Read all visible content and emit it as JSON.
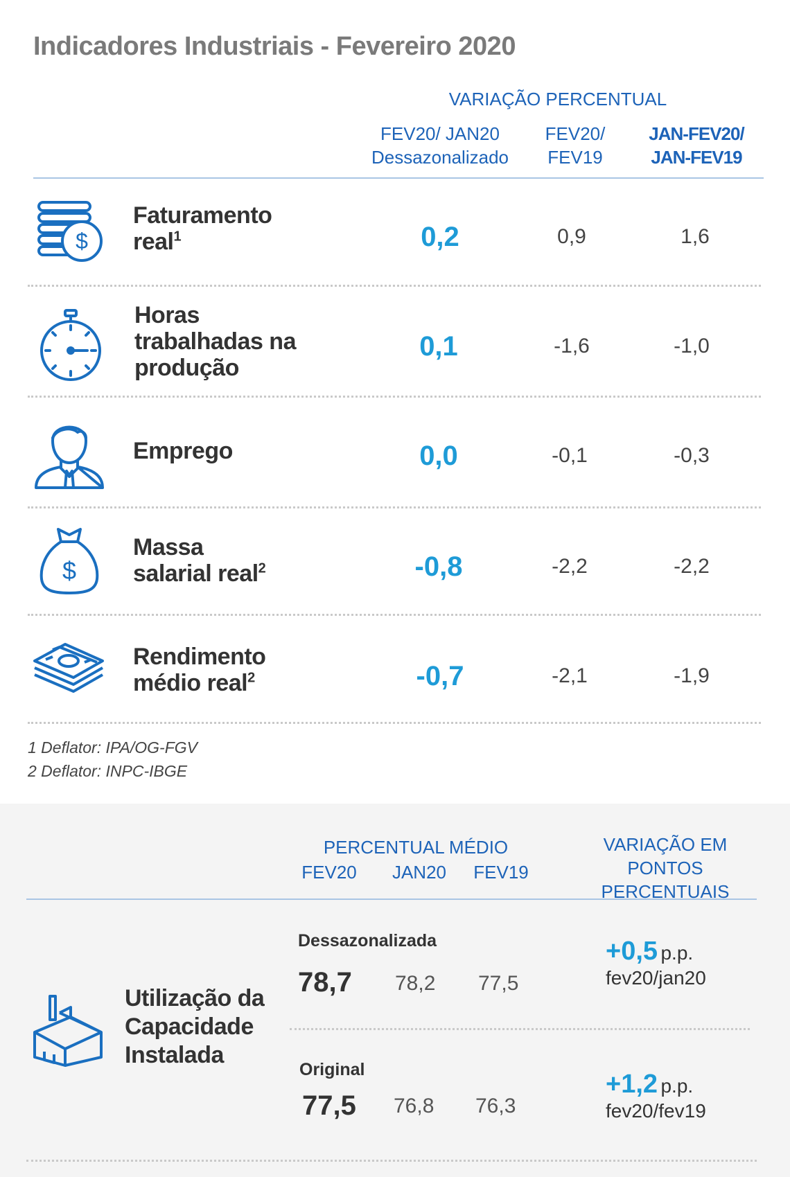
{
  "title": "Indicadores Industriais - Fevereiro 2020",
  "top_table": {
    "group_header": "VARIAÇÃO PERCENTUAL",
    "columns": [
      {
        "line1": "FEV20/ JAN20",
        "line2": "Dessazonalizado"
      },
      {
        "line1": "FEV20/",
        "line2": "FEV19"
      },
      {
        "line1": "JAN-FEV20/",
        "line2": "JAN-FEV19"
      }
    ],
    "rows": [
      {
        "icon": "coins-stack-icon",
        "label_lines": [
          "Faturamento",
          "real"
        ],
        "sup": "1",
        "values": [
          "0,2",
          "0,9",
          "1,6"
        ]
      },
      {
        "icon": "stopwatch-icon",
        "label_lines": [
          "Horas",
          "trabalhadas na",
          "produção"
        ],
        "sup": "",
        "values": [
          "0,1",
          "-1,6",
          "-1,0"
        ]
      },
      {
        "icon": "employee-icon",
        "label_lines": [
          "Emprego"
        ],
        "sup": "",
        "values": [
          "0,0",
          "-0,1",
          "-0,3"
        ]
      },
      {
        "icon": "money-bag-icon",
        "label_lines": [
          "Massa",
          "salarial real"
        ],
        "sup": "2",
        "values": [
          "-0,8",
          "-2,2",
          "-2,2"
        ]
      },
      {
        "icon": "cash-stack-icon",
        "label_lines": [
          "Rendimento",
          "médio real"
        ],
        "sup": "2",
        "values": [
          "-0,7",
          "-2,1",
          "-1,9"
        ]
      }
    ],
    "footnotes": [
      "1 Deflator: IPA/OG-FGV",
      "2 Deflator: INPC-IBGE"
    ]
  },
  "bottom_table": {
    "header_left": "PERCENTUAL MÉDIO",
    "columns": [
      "FEV20",
      "JAN20",
      "FEV19"
    ],
    "header_right_line1": "VARIAÇÃO EM",
    "header_right_line2": "PONTOS PERCENTUAIS",
    "label_lines": [
      "Utilização da",
      "Capacidade",
      "Instalada"
    ],
    "icon": "factory-icon",
    "series": [
      {
        "name": "Dessazonalizada",
        "values": [
          "78,7",
          "78,2",
          "77,5"
        ],
        "variation": "+0,5",
        "unit": "p.p.",
        "period": "fev20/jan20"
      },
      {
        "name": "Original",
        "values": [
          "77,5",
          "76,8",
          "76,3"
        ],
        "variation": "+1,2",
        "unit": "p.p.",
        "period": "fev20/fev19"
      }
    ]
  },
  "colors": {
    "accent_blue": "#1d63b8",
    "value_cyan": "#1e9bd7",
    "icon_blue": "#1a6fc0"
  }
}
